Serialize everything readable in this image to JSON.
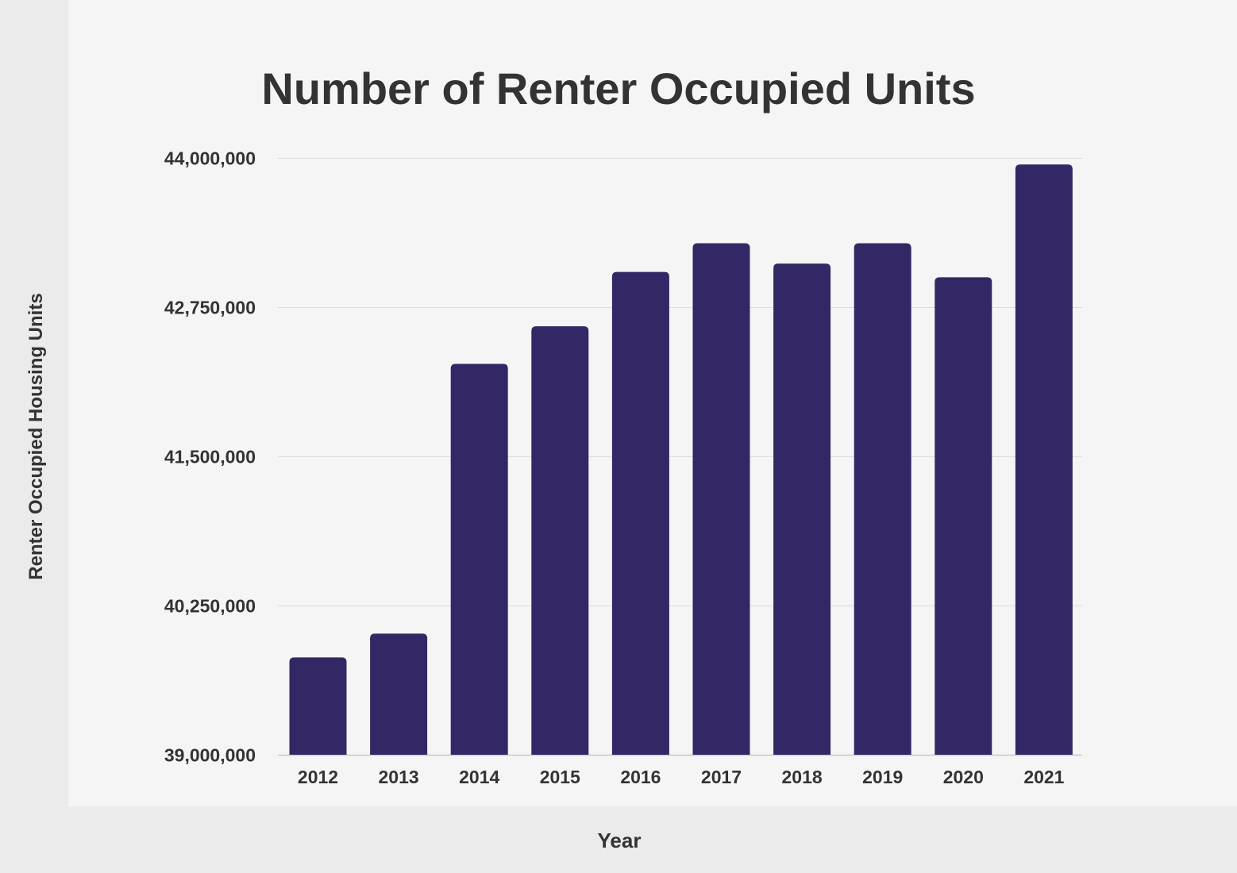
{
  "chart_data": {
    "type": "bar",
    "title": "Number of Renter Occupied Units",
    "xlabel": "Year",
    "ylabel": "Renter Occupied Housing Units",
    "categories": [
      "2012",
      "2013",
      "2014",
      "2015",
      "2016",
      "2017",
      "2018",
      "2019",
      "2020",
      "2021"
    ],
    "values": [
      39815000,
      40015000,
      42275000,
      42590000,
      43045000,
      43285000,
      43115000,
      43285000,
      43000000,
      43945000
    ],
    "ylim": [
      39000000,
      44000000
    ],
    "yticks": [
      39000000,
      40250000,
      41500000,
      42750000,
      44000000
    ],
    "ytick_labels": [
      "39,000,000",
      "40,250,000",
      "41,500,000",
      "42,750,000",
      "44,000,000"
    ],
    "grid": true,
    "legend": "none",
    "colors": {
      "bar": "#332865",
      "grid": "#dddddd",
      "text": "#333333",
      "background": "#f5f5f5",
      "frame": "#ebebeb"
    }
  }
}
